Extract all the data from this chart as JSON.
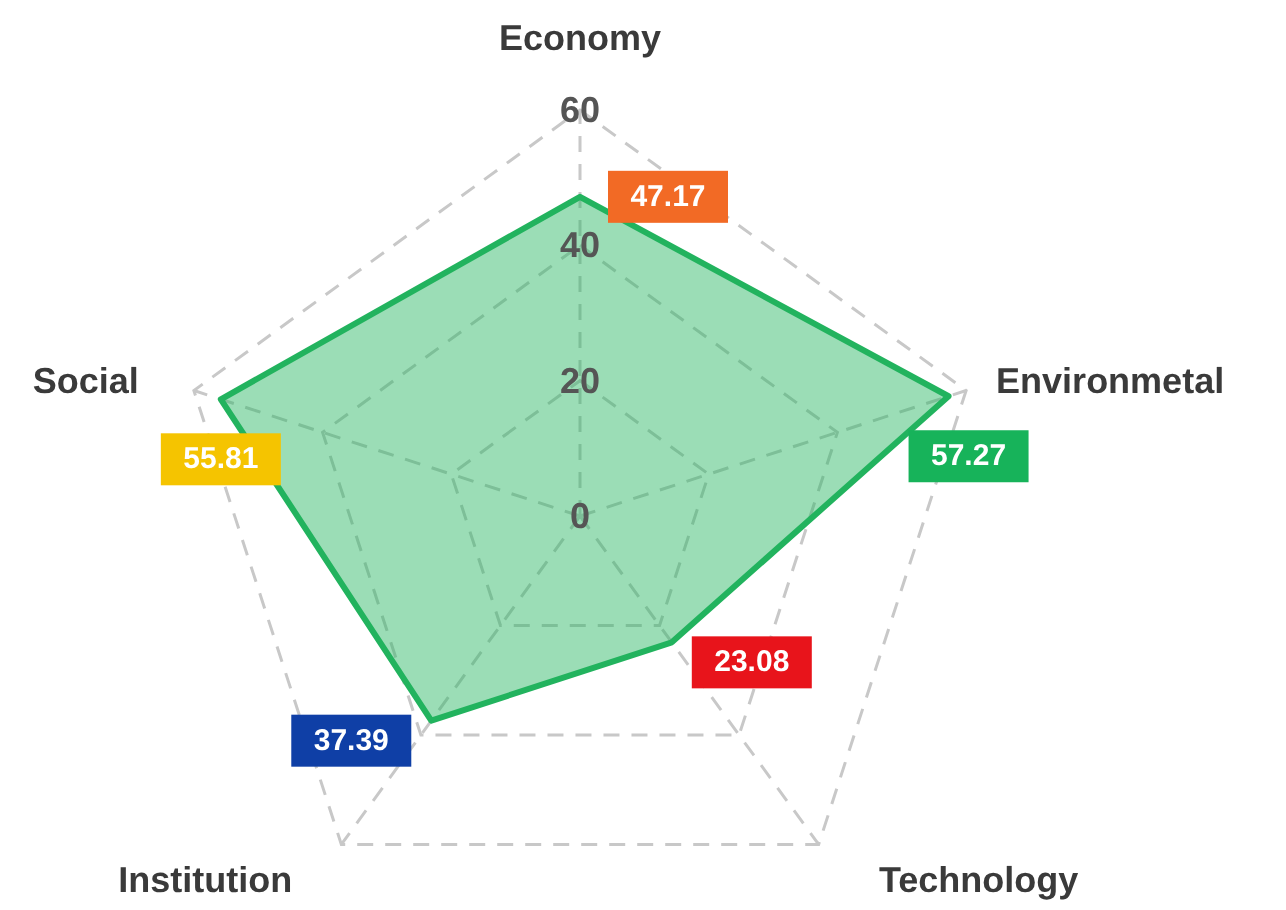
{
  "chart_data": {
    "type": "radar",
    "categories": [
      "Economy",
      "Environmetal",
      "Technology",
      "Institution",
      "Social"
    ],
    "series": [
      {
        "color": "#22b35e",
        "values": [
          47.17,
          57.27,
          23.08,
          37.39,
          55.81
        ],
        "colors": [
          "#f26a25",
          "#17b35a",
          "#e8141b",
          "#0f3fa6",
          "#f5c400"
        ]
      }
    ],
    "ylim": [
      0,
      60
    ],
    "yticks": [
      0,
      20,
      40,
      60
    ],
    "grid": true,
    "line_style": "solid",
    "marker": "none",
    "data_labels": true
  }
}
